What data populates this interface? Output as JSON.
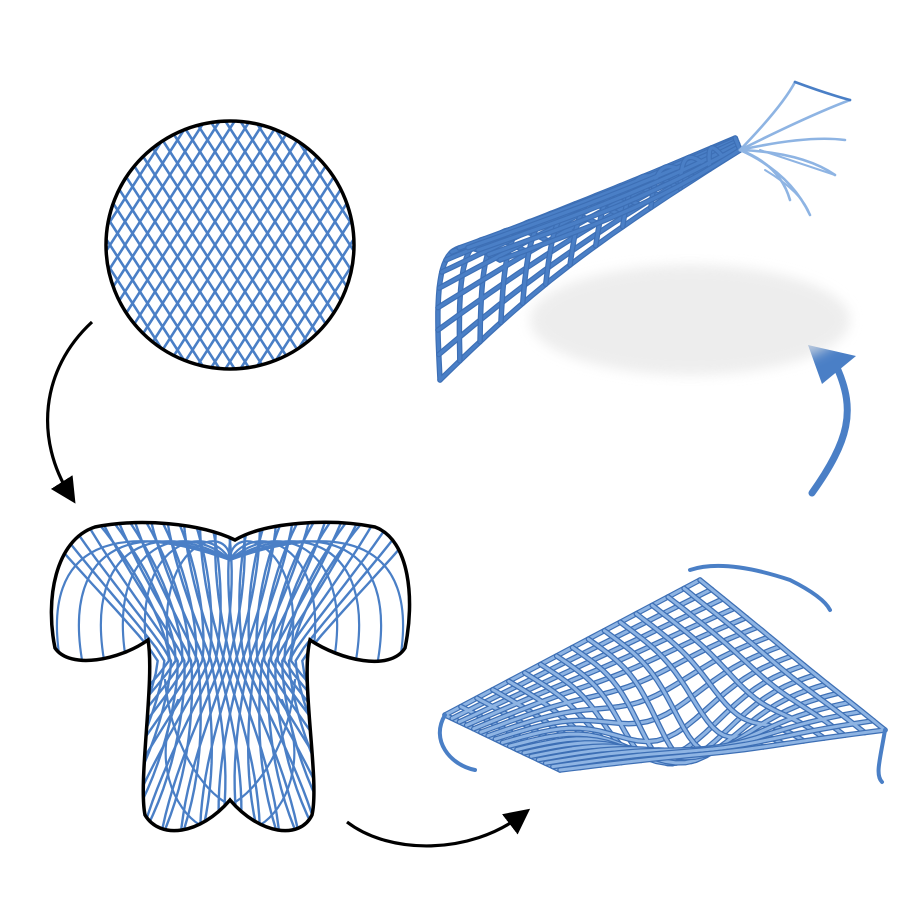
{
  "colors": {
    "lattice": "#4A7FC6",
    "lattice_light": "#8EB4E3",
    "outline": "#000000",
    "arrow_black": "#000000",
    "arrow_blue": "#4A7FC6",
    "shadow": "#d9d9d9",
    "background": "#ffffff"
  },
  "panels": [
    {
      "name": "circle-lattice",
      "description_icon": "circular-grid-icon"
    },
    {
      "name": "mapped-planar-lattice",
      "description_icon": "deformed-grid-icon"
    },
    {
      "name": "flat-lattice-3d",
      "description_icon": "lattice-3d-icon"
    },
    {
      "name": "deployed-lattice-3d",
      "description_icon": "curved-shell-icon"
    }
  ],
  "arrows": [
    {
      "name": "arrow-circle-to-planar",
      "color": "arrow_black"
    },
    {
      "name": "arrow-planar-to-flat",
      "color": "arrow_black"
    },
    {
      "name": "arrow-flat-to-deployed",
      "color": "arrow_blue"
    }
  ]
}
